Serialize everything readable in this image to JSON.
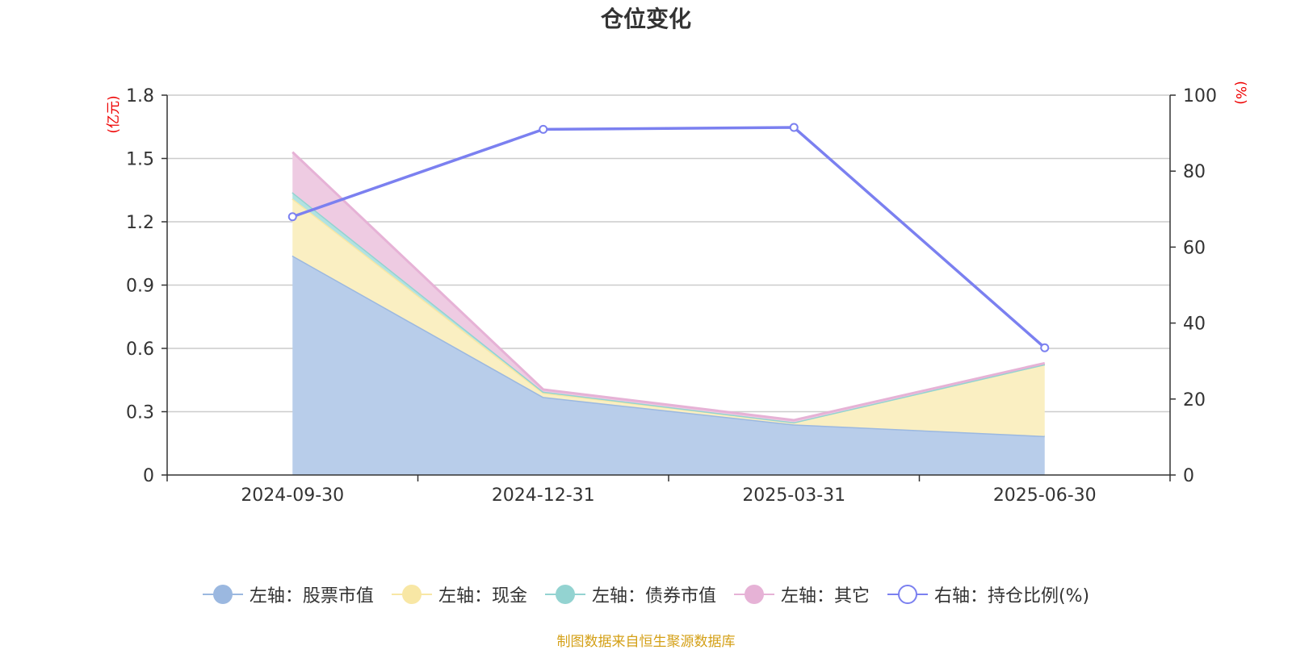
{
  "chart_data": {
    "type": "area",
    "title": "仓位变化",
    "categories": [
      "2024-09-30",
      "2024-12-31",
      "2025-03-31",
      "2025-06-30"
    ],
    "y_left": {
      "unit_label": "(亿元)",
      "min": 0,
      "max": 1.8,
      "ticks": [
        "0",
        "0.3",
        "0.6",
        "0.9",
        "1.2",
        "1.5",
        "1.8"
      ]
    },
    "y_right": {
      "unit_label": "(%)",
      "min": 0,
      "max": 100,
      "ticks": [
        "0",
        "20",
        "40",
        "60",
        "80",
        "100"
      ]
    },
    "stacked_series": [
      {
        "name": "左轴：股票市值",
        "axis": "left",
        "values": [
          1.04,
          0.37,
          0.24,
          0.185
        ],
        "color": "#9bb8e0",
        "fill": "#b8cdea"
      },
      {
        "name": "左轴：现金",
        "axis": "left",
        "values": [
          0.27,
          0.02,
          0.01,
          0.34
        ],
        "color": "#f8e7a5",
        "fill": "#faefc2"
      },
      {
        "name": "左轴：债券市值",
        "axis": "left",
        "values": [
          0.03,
          0.005,
          0.0,
          0.0
        ],
        "color": "#93d3d1",
        "fill": "#b1e2e1"
      },
      {
        "name": "左轴：其它",
        "axis": "left",
        "values": [
          0.19,
          0.01,
          0.01,
          0.005
        ],
        "color": "#e6b2d6",
        "fill": "#eecbe2"
      }
    ],
    "line_series": [
      {
        "name": "右轴：持仓比例(%)",
        "axis": "right",
        "values": [
          68,
          91,
          91.5,
          33.5
        ],
        "color": "#7b80f0"
      }
    ],
    "grid": true,
    "legend_position": "bottom"
  },
  "source": "制图数据来自恒生聚源数据库"
}
